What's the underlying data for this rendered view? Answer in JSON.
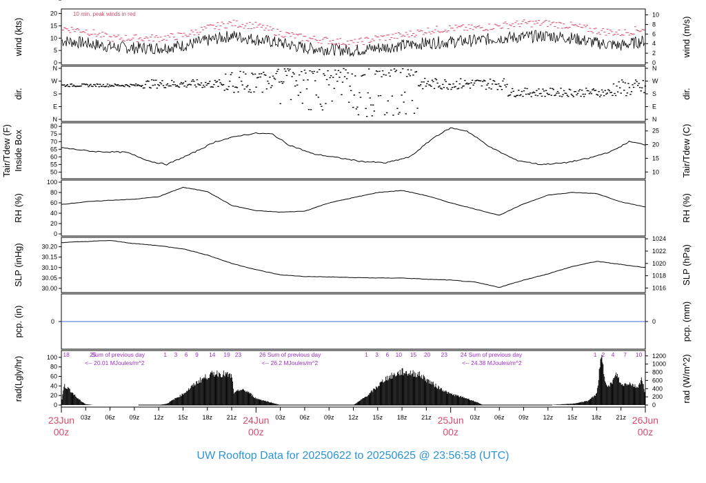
{
  "title": "UW Rooftop Data for 20250622  to  20250625 @ 23:56:58  (UTC)",
  "colors": {
    "day_labels": "#d94a6a",
    "title": "#2b94d6",
    "peak_winds": "#d94a6a",
    "precip_line": "#3a6fcf",
    "solar_notes": "#9b30c8"
  },
  "x_axis": {
    "hours_span": 72,
    "ticks": [
      "23Jun",
      "03z",
      "06z",
      "09z",
      "12z",
      "15z",
      "18z",
      "21z",
      "24Jun",
      "03z",
      "06z",
      "09z",
      "12z",
      "15z",
      "18z",
      "21z",
      "25Jun",
      "03z",
      "06z",
      "09z",
      "12z",
      "15z",
      "18z",
      "21z",
      "26Jun"
    ],
    "day_labels": [
      {
        "date": "23Jun",
        "hour": "00z"
      },
      {
        "date": "24Jun",
        "hour": "00z"
      },
      {
        "date": "25Jun",
        "hour": "00z"
      },
      {
        "date": "26Jun",
        "hour": "00z"
      }
    ]
  },
  "chart_data": [
    {
      "type": "line",
      "id": "wind",
      "ylabel": "wind (kts)",
      "ylabel_right": "wind (m/s)",
      "ylim": [
        0,
        21
      ],
      "yticks": [
        "0",
        "5",
        "10",
        "15",
        "20"
      ],
      "ylim_right": [
        0,
        10.8
      ],
      "yticks_right": [
        "0",
        "2",
        "4",
        "6",
        "8",
        "10"
      ],
      "annotation": "10 min. peak winds in red",
      "series": [
        {
          "hours": [
            0,
            3,
            6,
            9,
            12,
            15,
            18,
            21,
            24,
            27,
            30,
            33,
            36,
            39,
            42,
            45,
            48,
            51,
            54,
            57,
            60,
            63,
            66,
            69,
            72
          ],
          "values": [
            9,
            8,
            6.5,
            6,
            6,
            7,
            9,
            11,
            9.5,
            8,
            6,
            5.5,
            5,
            6,
            7,
            8,
            8.5,
            9,
            10,
            10.5,
            11,
            10,
            8,
            7,
            9
          ]
        },
        {
          "hours": [
            0,
            3,
            6,
            9,
            12,
            15,
            18,
            21,
            24,
            27,
            30,
            33,
            36,
            39,
            42,
            45,
            48,
            51,
            54,
            57,
            60,
            63,
            66,
            69,
            72
          ],
          "values": [
            14,
            13,
            10,
            10,
            10,
            11,
            14,
            16,
            15,
            12,
            10,
            9,
            8,
            10,
            11,
            13,
            14,
            14,
            15,
            16,
            16,
            15,
            13,
            12,
            14
          ]
        }
      ]
    },
    {
      "type": "scatter",
      "id": "direction",
      "ylabel": "dir.",
      "ylabel_right": "dir.",
      "yticks": [
        "N",
        "E",
        "S",
        "W",
        "N"
      ],
      "ylim": [
        0,
        360
      ]
    },
    {
      "type": "line",
      "id": "temperature",
      "ylabel": "Tair/Tdew (F)",
      "ylabel2": "Inside Box",
      "ylabel_right": "Tair/Tdew (C)",
      "ylim": [
        47,
        81
      ],
      "yticks": [
        "50",
        "55",
        "60",
        "65",
        "70",
        "75",
        "80"
      ],
      "ylim_right": [
        8.3,
        27.2
      ],
      "yticks_right": [
        "10",
        "15",
        "20",
        "25"
      ],
      "series": [
        {
          "hours": [
            0,
            4,
            8,
            11,
            13,
            16,
            19,
            22,
            24,
            26,
            28,
            31,
            34,
            37,
            40,
            43,
            46,
            48,
            50,
            53,
            56,
            59,
            62,
            65,
            68,
            70,
            72
          ],
          "values": [
            66,
            63.5,
            63,
            57,
            55,
            62,
            70,
            74,
            75.5,
            75,
            68,
            62,
            59.5,
            57,
            56,
            60,
            73,
            79,
            77,
            66,
            58,
            55,
            56,
            59,
            64,
            70,
            68
          ]
        }
      ]
    },
    {
      "type": "line",
      "id": "humidity",
      "ylabel": "RH (%)",
      "ylabel_right": "RH (%)",
      "ylim": [
        0,
        100
      ],
      "yticks": [
        "0",
        "20",
        "40",
        "60",
        "80",
        "100"
      ],
      "series": [
        {
          "hours": [
            0,
            3,
            6,
            9,
            12,
            15,
            18,
            21,
            24,
            27,
            30,
            33,
            36,
            39,
            42,
            45,
            48,
            51,
            54,
            57,
            60,
            63,
            66,
            69,
            72
          ],
          "values": [
            57,
            62,
            65,
            67,
            72,
            90,
            82,
            55,
            45,
            42,
            44,
            60,
            70,
            80,
            84,
            74,
            60,
            48,
            36,
            58,
            75,
            80,
            78,
            62,
            52
          ]
        }
      ]
    },
    {
      "type": "line",
      "id": "pressure",
      "ylabel": "SLP (inHg)",
      "ylabel_right": "SLP (hPa)",
      "ylim": [
        29.99,
        30.235
      ],
      "yticks": [
        "30.00",
        "30.05",
        "30.10",
        "30.15",
        "30.20"
      ],
      "ylim_right": [
        1015.6,
        1023.9
      ],
      "yticks_right": [
        "1016",
        "1018",
        "1020",
        "1022",
        "1024"
      ],
      "series": [
        {
          "hours": [
            0,
            3,
            6,
            9,
            12,
            15,
            18,
            21,
            24,
            27,
            30,
            33,
            36,
            39,
            42,
            45,
            48,
            51,
            54,
            57,
            60,
            63,
            66,
            69,
            72
          ],
          "values": [
            30.22,
            30.225,
            30.23,
            30.215,
            30.205,
            30.19,
            30.16,
            30.12,
            30.09,
            30.065,
            30.057,
            30.055,
            30.052,
            30.05,
            30.05,
            30.044,
            30.04,
            30.03,
            30.005,
            30.04,
            30.07,
            30.105,
            30.13,
            30.115,
            30.1
          ]
        }
      ]
    },
    {
      "type": "line",
      "id": "precip",
      "ylabel": "pcp. (in)",
      "ylabel_right": "pcp. (mm)",
      "yticks": [
        "0"
      ],
      "yticks_right": [
        "0"
      ],
      "series": [
        {
          "hours": [
            0,
            72
          ],
          "values": [
            0,
            0
          ]
        }
      ]
    },
    {
      "type": "area",
      "id": "radiation",
      "ylabel": "rad(Lgly/hr)",
      "ylabel_right": "rad (W/m^2)",
      "ylim": [
        0,
        110
      ],
      "yticks": [
        "0",
        "20",
        "40",
        "60",
        "80",
        "100"
      ],
      "ylim_right": [
        0,
        1280
      ],
      "yticks_right": [
        "0",
        "200",
        "400",
        "600",
        "800",
        "1000",
        "1200"
      ],
      "notes": [
        {
          "hour": 0.2,
          "text": "18"
        },
        {
          "hour": 3.5,
          "text": "25"
        },
        {
          "hour": 3.7,
          "text": "Sum of previous day"
        },
        {
          "hour": 2.9,
          "text": "<-- 20.01 MJoules/m^2"
        },
        {
          "hour": 24.4,
          "text": "26 Sum of previous day"
        },
        {
          "hour": 24.7,
          "text": "<-- 26.2 MJoules/m^2"
        },
        {
          "hour": 49.2,
          "text": "24  Sum of previous day"
        },
        {
          "hour": 49.4,
          "text": "<-- 24.38 MJoules/m^2"
        }
      ],
      "hour_marks": [
        {
          "hour": 12.8,
          "text": "1"
        },
        {
          "hour": 14.1,
          "text": "3"
        },
        {
          "hour": 15.4,
          "text": "6"
        },
        {
          "hour": 16.7,
          "text": "9"
        },
        {
          "hour": 18.6,
          "text": "14"
        },
        {
          "hour": 20.4,
          "text": "19"
        },
        {
          "hour": 21.8,
          "text": "23"
        },
        {
          "hour": 37.6,
          "text": "1"
        },
        {
          "hour": 38.9,
          "text": "3"
        },
        {
          "hour": 40.2,
          "text": "6"
        },
        {
          "hour": 41.6,
          "text": "10"
        },
        {
          "hour": 43.4,
          "text": "15"
        },
        {
          "hour": 45.1,
          "text": "20"
        },
        {
          "hour": 47.2,
          "text": "23"
        },
        {
          "hour": 65.8,
          "text": "1"
        },
        {
          "hour": 66.8,
          "text": "2"
        },
        {
          "hour": 68,
          "text": "4"
        },
        {
          "hour": 69.5,
          "text": "7"
        },
        {
          "hour": 71.2,
          "text": "10"
        }
      ],
      "series": [
        {
          "hours": [
            0,
            0.3,
            1,
            2,
            2.5,
            3,
            4,
            8,
            12,
            13,
            15,
            17,
            18,
            19,
            20,
            21,
            21.3,
            22,
            23,
            24,
            25,
            26,
            27,
            34,
            36,
            36.5,
            37,
            38,
            40,
            42,
            43,
            44,
            45,
            46,
            47,
            47.6,
            48,
            49,
            50,
            51,
            51.5,
            52,
            60,
            61,
            62,
            63,
            64,
            65,
            66,
            66.3,
            66.6,
            67,
            67.5,
            68,
            68.5,
            69,
            70,
            71,
            71.6,
            72
          ],
          "values": [
            0,
            45,
            35,
            15,
            8,
            2,
            0,
            0,
            0,
            3,
            25,
            55,
            65,
            72,
            70,
            65,
            25,
            35,
            30,
            15,
            10,
            5,
            0,
            0,
            0,
            6,
            12,
            25,
            60,
            75,
            72,
            70,
            58,
            45,
            35,
            28,
            25,
            20,
            15,
            8,
            4,
            0,
            0,
            1,
            2,
            3,
            6,
            10,
            25,
            70,
            110,
            60,
            40,
            55,
            70,
            45,
            50,
            40,
            60,
            20
          ]
        }
      ]
    }
  ]
}
